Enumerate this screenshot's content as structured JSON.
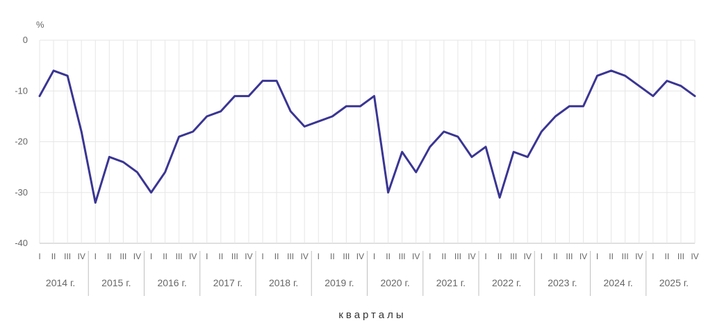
{
  "chart_data": {
    "type": "line",
    "ylabel": "%",
    "xlabel": "кварталы",
    "ylim": [
      -40,
      0
    ],
    "yticks": [
      0,
      -10,
      -20,
      -30,
      -40
    ],
    "quarter_labels": [
      "I",
      "II",
      "III",
      "IV"
    ],
    "years": [
      "2014 г.",
      "2015 г.",
      "2016 г.",
      "2017 г.",
      "2018 г.",
      "2019 г.",
      "2020 г.",
      "2021 г.",
      "2022 г.",
      "2023 г.",
      "2024 г.",
      "2025 г."
    ],
    "series": [
      {
        "values": [
          -11,
          -6,
          -7,
          -18,
          -32,
          -23,
          -24,
          -26,
          -30,
          -26,
          -19,
          -18,
          -15,
          -14,
          -11,
          -11,
          -8,
          -8,
          -14,
          -17,
          -16,
          -15,
          -13,
          -13,
          -11,
          -30,
          -22,
          -26,
          -21,
          -18,
          -19,
          -23,
          -21,
          -31,
          -22,
          -23,
          -18,
          -15,
          -13,
          -13,
          -7,
          -6,
          -7,
          -9,
          -11,
          -8,
          -9,
          -11
        ]
      }
    ],
    "grid": true,
    "colors": {
      "line": "#3a3593",
      "grid": "#e6e6e6",
      "axis": "#bfbfbf"
    }
  }
}
